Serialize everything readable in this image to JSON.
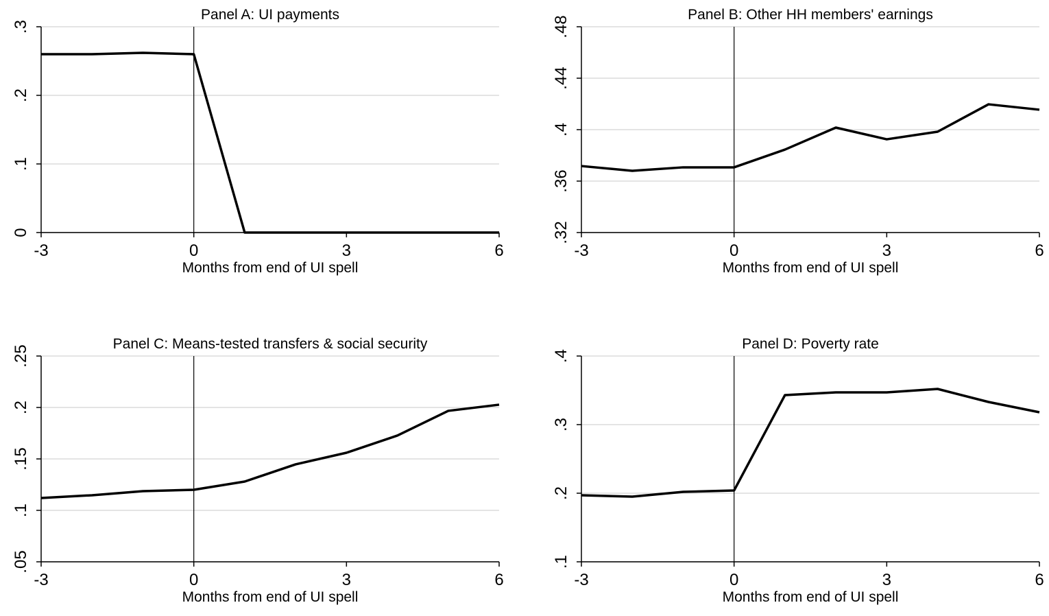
{
  "chart_data": [
    {
      "type": "line",
      "title": "Panel A: UI payments",
      "x_label": "Months from end of UI spell",
      "x": [
        -3,
        -2,
        -1,
        0,
        1,
        2,
        3,
        4,
        5,
        6
      ],
      "values": [
        0.26,
        0.26,
        0.262,
        0.26,
        0,
        0,
        0,
        0,
        0,
        0
      ],
      "color": "#000000",
      "xlim": [
        -3,
        6
      ],
      "xticks": [
        -3,
        0,
        3,
        6
      ],
      "ylim": [
        0,
        0.3
      ],
      "yticks": [
        0,
        {
          "value": 0.1,
          "label": ".1"
        },
        {
          "value": 0.2,
          "label": ".2"
        },
        {
          "value": 0.3,
          "label": ".3"
        }
      ],
      "vline": 0,
      "grid": true
    },
    {
      "type": "line",
      "title": "Panel B: Other HH members' earnings",
      "x_label": "Months from end of UI spell",
      "x": [
        -3,
        -2,
        -1,
        0,
        1,
        2,
        3,
        4,
        5,
        6
      ],
      "values": [
        0.3717,
        0.368,
        0.3707,
        0.3707,
        0.3845,
        0.4016,
        0.3925,
        0.3984,
        0.4197,
        0.4155
      ],
      "color": "#000000",
      "xlim": [
        -3,
        6
      ],
      "xticks": [
        -3,
        0,
        3,
        6
      ],
      "ylim": [
        0.32,
        0.48
      ],
      "yticks": [
        {
          "value": 0.32,
          "label": ".32"
        },
        {
          "value": 0.36,
          "label": ".36"
        },
        {
          "value": 0.4,
          "label": ".4"
        },
        {
          "value": 0.44,
          "label": ".44"
        },
        {
          "value": 0.48,
          "label": ".48"
        }
      ],
      "vline": 0,
      "grid": true
    },
    {
      "type": "line",
      "title": "Panel C: Means-tested transfers & social security",
      "x_label": "Months from end of UI spell",
      "x": [
        -3,
        -2,
        -1,
        0,
        1,
        2,
        3,
        4,
        5,
        6
      ],
      "values": [
        0.112,
        0.1147,
        0.1187,
        0.12,
        0.128,
        0.1447,
        0.156,
        0.1727,
        0.1967,
        0.2027
      ],
      "color": "#000000",
      "xlim": [
        -3,
        6
      ],
      "xticks": [
        -3,
        0,
        3,
        6
      ],
      "ylim": [
        0.05,
        0.25
      ],
      "yticks": [
        {
          "value": 0.05,
          "label": ".05"
        },
        {
          "value": 0.1,
          "label": ".1"
        },
        {
          "value": 0.15,
          "label": ".15"
        },
        {
          "value": 0.2,
          "label": ".2"
        },
        {
          "value": 0.25,
          "label": ".25"
        }
      ],
      "vline": 0,
      "grid": true
    },
    {
      "type": "line",
      "title": "Panel D: Poverty rate",
      "x_label": "Months from end of UI spell",
      "x": [
        -3,
        -2,
        -1,
        0,
        1,
        2,
        3,
        4,
        5,
        6
      ],
      "values": [
        0.197,
        0.195,
        0.202,
        0.204,
        0.343,
        0.347,
        0.347,
        0.352,
        0.333,
        0.318
      ],
      "color": "#000000",
      "xlim": [
        -3,
        6
      ],
      "xticks": [
        -3,
        0,
        3,
        6
      ],
      "ylim": [
        0.1,
        0.4
      ],
      "yticks": [
        {
          "value": 0.1,
          "label": ".1"
        },
        {
          "value": 0.2,
          "label": ".2"
        },
        {
          "value": 0.3,
          "label": ".3"
        },
        {
          "value": 0.4,
          "label": ".4"
        }
      ],
      "vline": 0,
      "grid": true
    }
  ]
}
